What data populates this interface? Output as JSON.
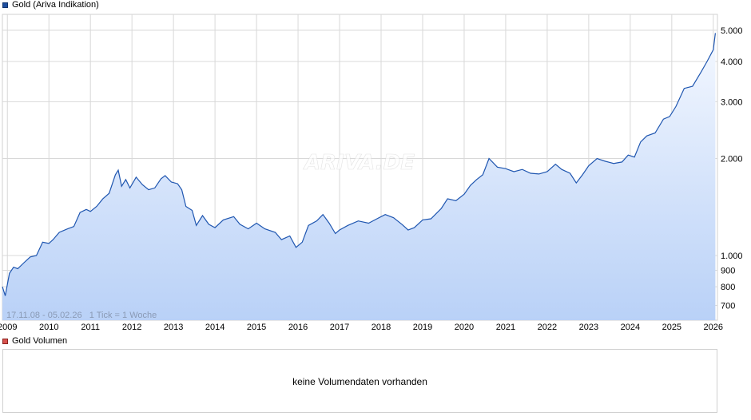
{
  "legend": {
    "price_label": "Gold (Ariva Indikation)",
    "volume_label": "Gold Volumen"
  },
  "info_text": "17.11.08 - 05.02.26   1 Tick = 1 Woche",
  "watermark": "ARIVA.DE",
  "volume": {
    "message": "keine Volumendaten vorhanden"
  },
  "chart_data": {
    "type": "area",
    "yscale": "log",
    "ylim": [
      630,
      5600
    ],
    "xlim": [
      2008.88,
      2026.1
    ],
    "x_ticks": [
      "2009",
      "2010",
      "2011",
      "2012",
      "2013",
      "2014",
      "2015",
      "2016",
      "2017",
      "2018",
      "2019",
      "2020",
      "2021",
      "2022",
      "2023",
      "2024",
      "2025",
      "2026"
    ],
    "y_ticks": [
      700,
      800,
      900,
      1000,
      2000,
      3000,
      4000,
      5000
    ],
    "y_tick_labels": [
      "700",
      "800",
      "900",
      "1.000",
      "2.000",
      "3.000",
      "4.000",
      "5.000"
    ],
    "grid": true,
    "colors": {
      "line": "#1f56b0",
      "fill_top": "#eef4fe",
      "fill_bottom": "#b9d1f7",
      "grid": "#d8d8d8"
    },
    "series": [
      {
        "name": "Gold (Ariva Indikation)",
        "x": [
          2008.88,
          2008.95,
          2009.05,
          2009.15,
          2009.25,
          2009.4,
          2009.55,
          2009.7,
          2009.85,
          2010.0,
          2010.1,
          2010.25,
          2010.45,
          2010.6,
          2010.75,
          2010.9,
          2011.0,
          2011.15,
          2011.3,
          2011.45,
          2011.6,
          2011.67,
          2011.75,
          2011.85,
          2011.95,
          2012.1,
          2012.25,
          2012.4,
          2012.55,
          2012.7,
          2012.8,
          2012.95,
          2013.1,
          2013.2,
          2013.3,
          2013.45,
          2013.55,
          2013.7,
          2013.85,
          2014.0,
          2014.2,
          2014.45,
          2014.6,
          2014.8,
          2015.0,
          2015.2,
          2015.45,
          2015.6,
          2015.8,
          2015.95,
          2016.1,
          2016.25,
          2016.45,
          2016.6,
          2016.75,
          2016.9,
          2017.0,
          2017.2,
          2017.45,
          2017.7,
          2017.9,
          2018.1,
          2018.3,
          2018.5,
          2018.65,
          2018.8,
          2019.0,
          2019.2,
          2019.45,
          2019.6,
          2019.8,
          2020.0,
          2020.15,
          2020.3,
          2020.45,
          2020.6,
          2020.8,
          2021.0,
          2021.2,
          2021.4,
          2021.6,
          2021.8,
          2022.0,
          2022.2,
          2022.35,
          2022.55,
          2022.7,
          2022.85,
          2023.0,
          2023.2,
          2023.4,
          2023.6,
          2023.8,
          2023.95,
          2024.1,
          2024.25,
          2024.4,
          2024.6,
          2024.8,
          2024.95,
          2025.1,
          2025.3,
          2025.5,
          2025.7,
          2025.85,
          2026.0,
          2026.05
        ],
        "y": [
          800,
          750,
          880,
          920,
          910,
          950,
          990,
          1000,
          1100,
          1090,
          1120,
          1180,
          1210,
          1230,
          1360,
          1390,
          1370,
          1420,
          1500,
          1560,
          1780,
          1840,
          1640,
          1720,
          1620,
          1750,
          1660,
          1600,
          1620,
          1730,
          1770,
          1690,
          1670,
          1600,
          1420,
          1380,
          1240,
          1330,
          1250,
          1220,
          1290,
          1320,
          1250,
          1210,
          1260,
          1210,
          1180,
          1120,
          1150,
          1060,
          1100,
          1240,
          1280,
          1340,
          1260,
          1170,
          1200,
          1240,
          1280,
          1260,
          1300,
          1340,
          1310,
          1250,
          1200,
          1220,
          1290,
          1300,
          1400,
          1500,
          1480,
          1550,
          1650,
          1720,
          1780,
          2000,
          1880,
          1860,
          1820,
          1850,
          1800,
          1790,
          1820,
          1920,
          1850,
          1800,
          1680,
          1780,
          1900,
          2000,
          1960,
          1930,
          1950,
          2050,
          2020,
          2250,
          2350,
          2400,
          2650,
          2700,
          2900,
          3300,
          3350,
          3700,
          4000,
          4350,
          4900
        ]
      }
    ]
  }
}
